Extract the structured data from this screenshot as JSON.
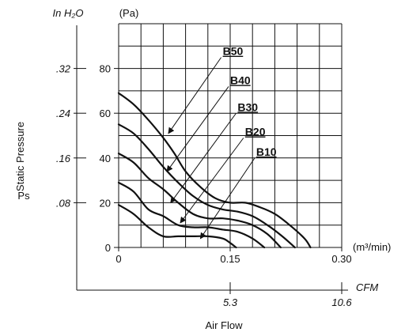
{
  "chart_data": {
    "type": "line",
    "xlabel": "Air Flow",
    "ylabel": "Static Pressure",
    "ylabel_symbol": "Ps",
    "x_unit": "(m³/min)",
    "y_unit": "(Pa)",
    "x_unit_alt": "CFM",
    "y_unit_alt": "In H₂O",
    "xlim": [
      0,
      0.3
    ],
    "ylim": [
      0,
      100
    ],
    "x_ticks": [
      {
        "value": 0,
        "label": "0"
      },
      {
        "value": 0.15,
        "label": "0.15"
      },
      {
        "value": 0.3,
        "label": "0.30"
      }
    ],
    "y_ticks": [
      {
        "value": 0,
        "label": "0"
      },
      {
        "value": 20,
        "label": "20"
      },
      {
        "value": 40,
        "label": "40"
      },
      {
        "value": 60,
        "label": "60"
      },
      {
        "value": 80,
        "label": "80"
      }
    ],
    "x_ticks_alt": [
      {
        "value": 0.15,
        "label": "5.3"
      },
      {
        "value": 0.3,
        "label": "10.6"
      }
    ],
    "y_ticks_alt": [
      {
        "value": 20,
        "label": ".08"
      },
      {
        "value": 40,
        "label": ".16"
      },
      {
        "value": 60,
        "label": ".24"
      },
      {
        "value": 80,
        "label": ".32"
      }
    ],
    "grid": true,
    "series": [
      {
        "name": "B50",
        "label_pos": [
          0.14,
          86
        ],
        "arrow_to": [
          0.067,
          51
        ],
        "x": [
          0,
          0.02,
          0.04,
          0.06,
          0.075,
          0.09,
          0.11,
          0.13,
          0.15,
          0.17,
          0.19,
          0.21,
          0.23,
          0.25,
          0.258
        ],
        "y": [
          69,
          64,
          57,
          49,
          42,
          34,
          27,
          22,
          20,
          20,
          18,
          15,
          10,
          4,
          0
        ]
      },
      {
        "name": "B40",
        "label_pos": [
          0.15,
          73
        ],
        "arrow_to": [
          0.065,
          34
        ],
        "x": [
          0,
          0.02,
          0.04,
          0.06,
          0.08,
          0.1,
          0.12,
          0.14,
          0.16,
          0.18,
          0.2,
          0.22,
          0.237
        ],
        "y": [
          55,
          51,
          44,
          36,
          29,
          23,
          19,
          17,
          16,
          14,
          10,
          5,
          0
        ]
      },
      {
        "name": "B30",
        "label_pos": [
          0.16,
          61
        ],
        "arrow_to": [
          0.07,
          20
        ],
        "x": [
          0,
          0.02,
          0.04,
          0.06,
          0.08,
          0.1,
          0.12,
          0.14,
          0.16,
          0.18,
          0.2,
          0.218
        ],
        "y": [
          42,
          38,
          31,
          26,
          20,
          15,
          13,
          13,
          12,
          10,
          6,
          0
        ]
      },
      {
        "name": "B20",
        "label_pos": [
          0.17,
          50
        ],
        "arrow_to": [
          0.083,
          11
        ],
        "x": [
          0,
          0.02,
          0.04,
          0.06,
          0.08,
          0.1,
          0.12,
          0.14,
          0.16,
          0.18,
          0.196
        ],
        "y": [
          29,
          25,
          17,
          14,
          10,
          9,
          9,
          8,
          7,
          4,
          0
        ]
      },
      {
        "name": "B10",
        "label_pos": [
          0.185,
          41
        ],
        "arrow_to": [
          0.11,
          4
        ],
        "x": [
          0,
          0.02,
          0.04,
          0.06,
          0.08,
          0.1,
          0.12,
          0.14,
          0.15,
          0.158
        ],
        "y": [
          19,
          15,
          9,
          5,
          5,
          5,
          5,
          4,
          2,
          0
        ]
      }
    ]
  }
}
